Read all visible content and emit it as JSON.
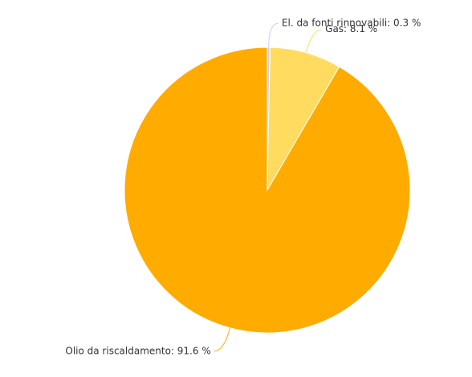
{
  "chart_data": {
    "type": "pie",
    "values": [
      0.3,
      8.1,
      91.6
    ],
    "value_labels": [
      "El. da fonti rinnovabili: 0.3 %",
      "Gas: 8.1 %",
      "Olio da riscaldamento: 91.6 %"
    ],
    "colors": [
      "#c7d0f2",
      "#ffdc60",
      "#ffab00"
    ]
  }
}
